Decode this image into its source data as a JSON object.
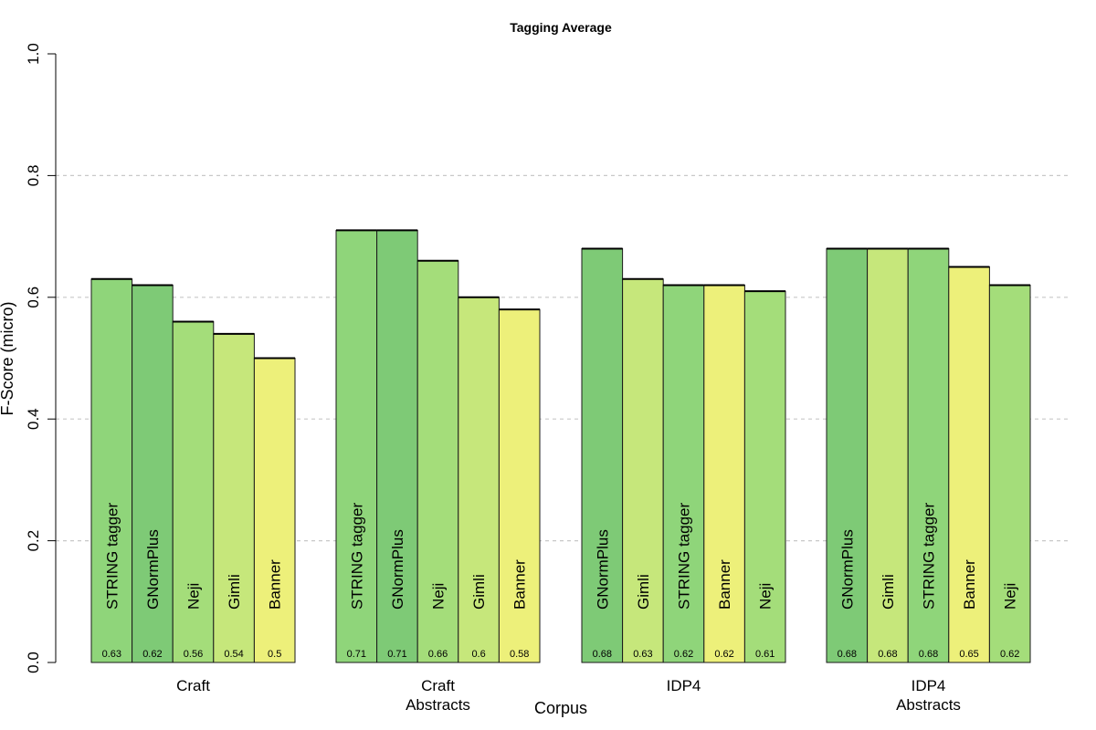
{
  "chart_data": {
    "type": "bar",
    "title": "Tagging Average",
    "xlabel": "Corpus",
    "ylabel": "F-Score (micro)",
    "ylim": [
      0,
      1
    ],
    "yticks": [
      "0.0",
      "0.2",
      "0.4",
      "0.6",
      "0.8",
      "1.0"
    ],
    "grid": "horizontal dashed",
    "groups": [
      {
        "label": [
          "Craft"
        ],
        "bars": [
          {
            "name": "STRING tagger",
            "value": 0.63,
            "value_label": "0.63",
            "color": "#8FD57A"
          },
          {
            "name": "GNormPlus",
            "value": 0.62,
            "value_label": "0.62",
            "color": "#7ECA76"
          },
          {
            "name": "Neji",
            "value": 0.56,
            "value_label": "0.56",
            "color": "#A4DD7A"
          },
          {
            "name": "Gimli",
            "value": 0.54,
            "value_label": "0.54",
            "color": "#C6E77B"
          },
          {
            "name": "Banner",
            "value": 0.5,
            "value_label": "0.5",
            "color": "#EDF07A"
          }
        ]
      },
      {
        "label": [
          "Craft",
          "Abstracts"
        ],
        "bars": [
          {
            "name": "STRING tagger",
            "value": 0.71,
            "value_label": "0.71",
            "color": "#8FD57A"
          },
          {
            "name": "GNormPlus",
            "value": 0.71,
            "value_label": "0.71",
            "color": "#7ECA76"
          },
          {
            "name": "Neji",
            "value": 0.66,
            "value_label": "0.66",
            "color": "#A4DD7A"
          },
          {
            "name": "Gimli",
            "value": 0.6,
            "value_label": "0.6",
            "color": "#C6E77B"
          },
          {
            "name": "Banner",
            "value": 0.58,
            "value_label": "0.58",
            "color": "#EDF07A"
          }
        ]
      },
      {
        "label": [
          "IDP4"
        ],
        "bars": [
          {
            "name": "GNormPlus",
            "value": 0.68,
            "value_label": "0.68",
            "color": "#7ECA76"
          },
          {
            "name": "Gimli",
            "value": 0.63,
            "value_label": "0.63",
            "color": "#C6E77B"
          },
          {
            "name": "STRING tagger",
            "value": 0.62,
            "value_label": "0.62",
            "color": "#8FD57A"
          },
          {
            "name": "Banner",
            "value": 0.62,
            "value_label": "0.62",
            "color": "#EDF07A"
          },
          {
            "name": "Neji",
            "value": 0.61,
            "value_label": "0.61",
            "color": "#A4DD7A"
          }
        ]
      },
      {
        "label": [
          "IDP4",
          "Abstracts"
        ],
        "bars": [
          {
            "name": "GNormPlus",
            "value": 0.68,
            "value_label": "0.68",
            "color": "#7ECA76"
          },
          {
            "name": "Gimli",
            "value": 0.68,
            "value_label": "0.68",
            "color": "#C6E77B"
          },
          {
            "name": "STRING tagger",
            "value": 0.68,
            "value_label": "0.68",
            "color": "#8FD57A"
          },
          {
            "name": "Banner",
            "value": 0.65,
            "value_label": "0.65",
            "color": "#EDF07A"
          },
          {
            "name": "Neji",
            "value": 0.62,
            "value_label": "0.62",
            "color": "#A4DD7A"
          }
        ]
      }
    ]
  }
}
